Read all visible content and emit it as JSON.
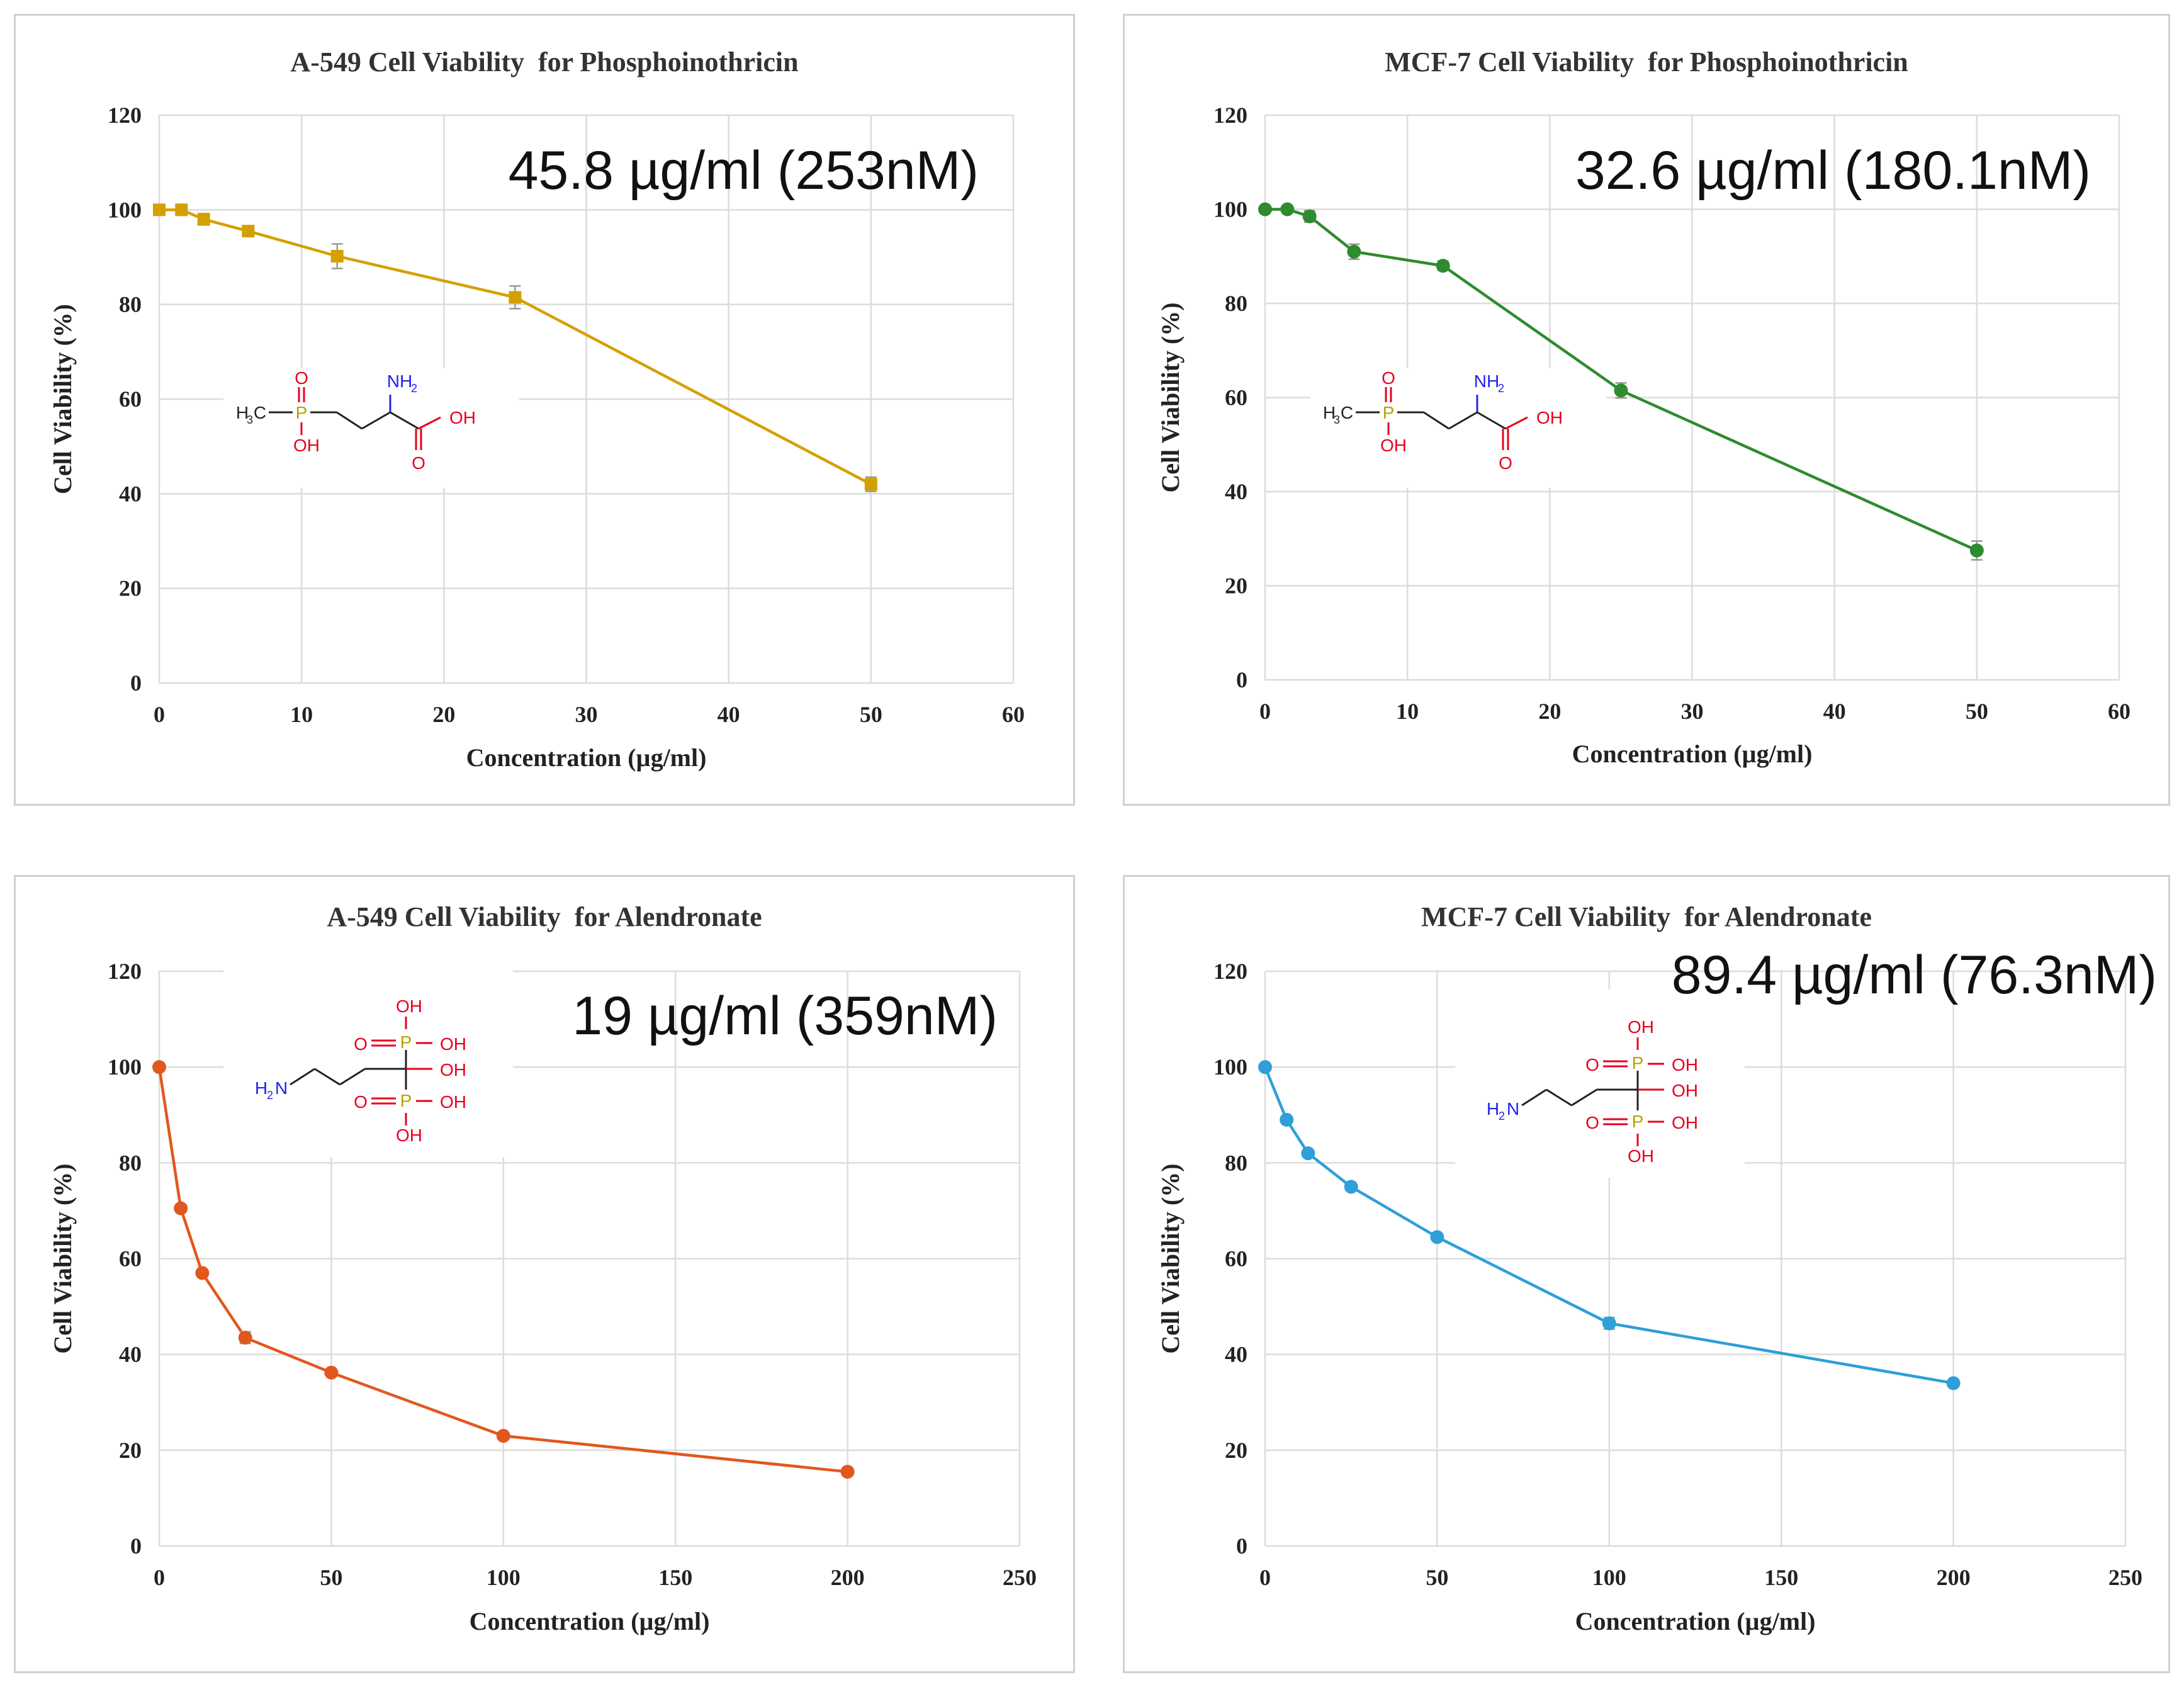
{
  "chart_data": [
    {
      "type": "line",
      "title": "A-549 Cell Viability  for Phosphoinothricin",
      "xlabel": "Concentration (µg/ml)",
      "ylabel": "Cell Viability (%)",
      "xlim": [
        0,
        60
      ],
      "ylim": [
        0,
        120
      ],
      "xticks": [
        "0",
        "10",
        "20",
        "30",
        "40",
        "50",
        "60"
      ],
      "yticks": [
        "0",
        "20",
        "40",
        "60",
        "80",
        "100",
        "120"
      ],
      "color": "#D4A000",
      "marker": "square",
      "x": [
        0,
        1.56,
        3.125,
        6.25,
        12.5,
        25,
        50
      ],
      "y": [
        100,
        100,
        98,
        95.5,
        90.2,
        81.5,
        42
      ],
      "err": [
        0.5,
        0.5,
        1.2,
        0.8,
        2.6,
        2.4,
        1.5
      ],
      "annotation": "45.8 µg/ml (253nM)",
      "structure": "phosphinothricin"
    },
    {
      "type": "line",
      "title": "MCF-7 Cell Viability  for Phosphoinothricin",
      "xlabel": "Concentration (µg/ml)",
      "ylabel": "Cell Viability (%)",
      "xlim": [
        0,
        60
      ],
      "ylim": [
        0,
        120
      ],
      "xticks": [
        "0",
        "10",
        "20",
        "30",
        "40",
        "50",
        "60"
      ],
      "yticks": [
        "0",
        "20",
        "40",
        "60",
        "80",
        "100",
        "120"
      ],
      "color": "#2E8B2E",
      "marker": "circle",
      "x": [
        0,
        1.56,
        3.125,
        6.25,
        12.5,
        25,
        50
      ],
      "y": [
        100,
        100,
        98.5,
        91,
        88,
        61.5,
        27.5
      ],
      "err": [
        0.5,
        0.6,
        1.2,
        1.6,
        1.0,
        1.6,
        2.0
      ],
      "annotation": "32.6 µg/ml (180.1nM)",
      "structure": "phosphinothricin"
    },
    {
      "type": "line",
      "title": "A-549 Cell Viability  for Alendronate",
      "xlabel": "Concentration (µg/ml)",
      "ylabel": "Cell Viability (%)",
      "xlim": [
        0,
        250
      ],
      "ylim": [
        0,
        120
      ],
      "xticks": [
        "0",
        "50",
        "100",
        "150",
        "200",
        "250"
      ],
      "yticks": [
        "0",
        "20",
        "40",
        "60",
        "80",
        "100",
        "120"
      ],
      "color": "#E2571E",
      "marker": "circle",
      "x": [
        0,
        6.25,
        12.5,
        25,
        50,
        100,
        200
      ],
      "y": [
        100,
        70.5,
        57,
        43.5,
        36.2,
        23,
        15.5
      ],
      "err": [
        0.5,
        0.6,
        0.6,
        1.2,
        0.6,
        0.5,
        0.5
      ],
      "annotation": "19 µg/ml (359nM)",
      "structure": "alendronate"
    },
    {
      "type": "line",
      "title": "MCF-7 Cell Viability  for Alendronate",
      "xlabel": "Concentration (µg/ml)",
      "ylabel": "Cell Viability (%)",
      "xlim": [
        0,
        250
      ],
      "ylim": [
        0,
        120
      ],
      "xticks": [
        "0",
        "50",
        "100",
        "150",
        "200",
        "250"
      ],
      "yticks": [
        "0",
        "20",
        "40",
        "60",
        "80",
        "100",
        "120"
      ],
      "color": "#2E9FD8",
      "marker": "circle",
      "x": [
        0,
        6.25,
        12.5,
        25,
        50,
        100,
        200
      ],
      "y": [
        100,
        89,
        82,
        75,
        64.5,
        46.5,
        34
      ],
      "err": [
        0.5,
        0.5,
        0.5,
        0.5,
        0.5,
        1.2,
        0.5
      ],
      "annotation": "89.4 µg/ml (76.3nM)",
      "structure": "alendronate"
    }
  ],
  "structures": {
    "phosphinothricin": {
      "ch3": "H",
      "ch3_sub": "3",
      "ch3_c": "C",
      "p": "P",
      "o_top": "O",
      "oh_bottom": "OH",
      "nh2": "NH",
      "nh2_sub": "2",
      "cooh_oh": "OH",
      "cooh_o": "O"
    },
    "alendronate": {
      "oh_top": "OH",
      "o_p1": "O",
      "p": "P",
      "oh_p1": "OH",
      "oh_mid": "OH",
      "o_p2": "O",
      "oh_p2": "OH",
      "oh_bottom": "OH",
      "nh2_h": "H",
      "nh2_sub": "2",
      "nh2_n": "N"
    }
  },
  "colors": {
    "oxygen": "#E8001E",
    "phosphorus": "#B7A200",
    "nitrogen": "#2222EE",
    "bond": "#222222"
  }
}
